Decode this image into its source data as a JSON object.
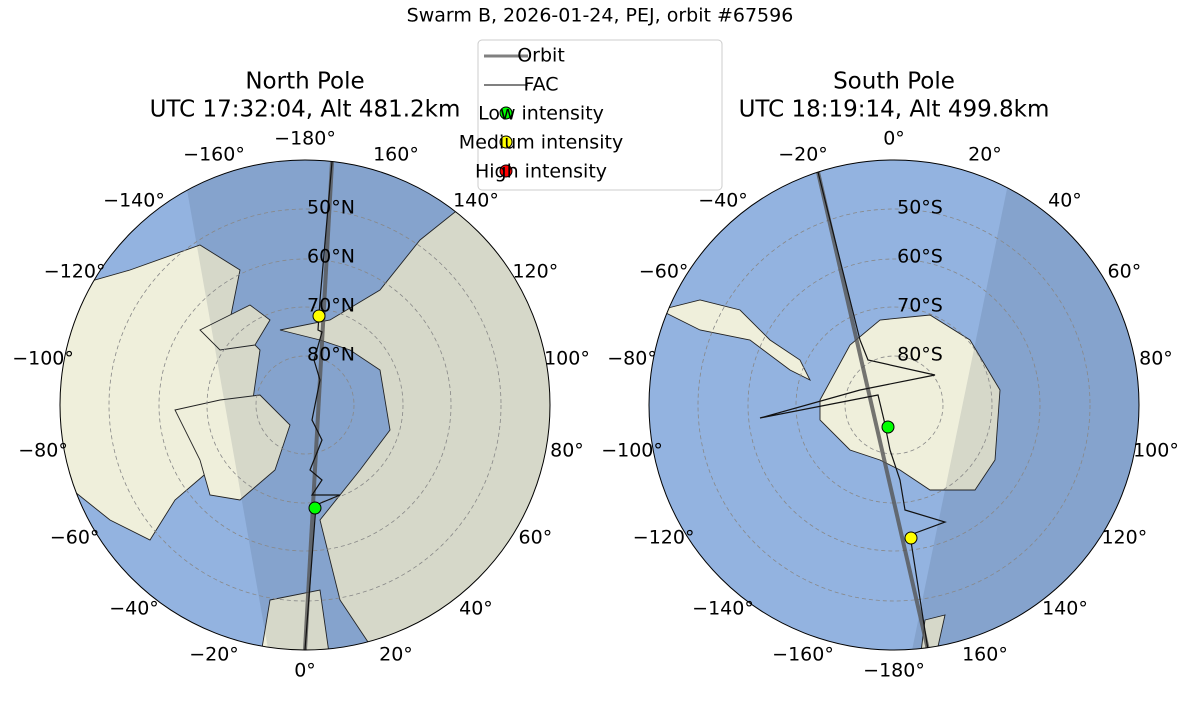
{
  "title": "Swarm B, 2026-01-24, PEJ, orbit #67596",
  "legend": [
    "Orbit",
    "FAC",
    "Low intensity",
    "Medium intensity",
    "High intensity"
  ],
  "maps": [
    {
      "title": "North Pole",
      "subtitle": "UTC 17:32:04, Alt 481.2km",
      "lon_labels": [
        "−180°",
        "160°",
        "140°",
        "120°",
        "100°",
        "80°",
        "60°",
        "40°",
        "20°",
        "0°",
        "−20°",
        "−40°",
        "−60°",
        "−80°",
        "−100°",
        "−120°",
        "−140°",
        "−160°"
      ],
      "lat_labels": [
        "50°N",
        "60°N",
        "70°N",
        "80°N"
      ]
    },
    {
      "title": "South Pole",
      "subtitle": "UTC 18:19:14, Alt 499.8km",
      "lon_labels": [
        "0°",
        "20°",
        "40°",
        "60°",
        "80°",
        "100°",
        "120°",
        "140°",
        "160°",
        "−180°",
        "−160°",
        "−140°",
        "−120°",
        "−100°",
        "−80°",
        "−60°",
        "−40°",
        "−20°"
      ],
      "lat_labels": [
        "50°S",
        "60°S",
        "70°S",
        "80°S"
      ]
    }
  ]
}
